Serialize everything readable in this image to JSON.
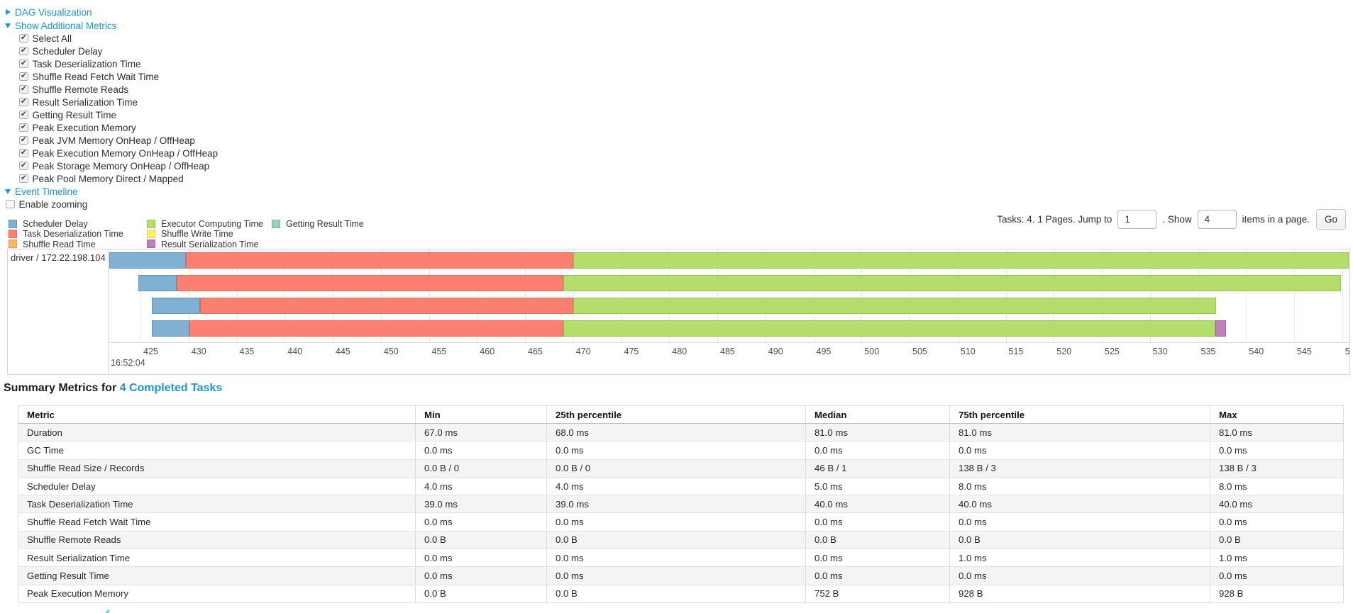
{
  "accent": {
    "link_blue": "#1a95d1"
  },
  "colors": {
    "scheduler_delay": "#80B1D3",
    "task_deserialization": "#FB8072",
    "shuffle_read": "#FDB462",
    "executor_computing": "#B3DE69",
    "shuffle_write": "#FFED6F",
    "result_serialization": "#BC80BD",
    "getting_result": "#8DD3C7"
  },
  "border_colors": {
    "scheduler_delay": "#5f93b5",
    "task_deserialization": "#df6a5e",
    "shuffle_read": "#dd9c50",
    "executor_computing": "#96c153",
    "shuffle_write": "#ddcb5e",
    "result_serialization": "#a268a5",
    "getting_result": "#72b9ab"
  },
  "sections": {
    "dag": {
      "label": "DAG Visualization"
    },
    "metrics_toggle": {
      "label": "Show Additional Metrics"
    },
    "metrics_items": [
      {
        "label": "Select All",
        "checked": true
      },
      {
        "label": "Scheduler Delay",
        "checked": true
      },
      {
        "label": "Task Deserialization Time",
        "checked": true
      },
      {
        "label": "Shuffle Read Fetch Wait Time",
        "checked": true
      },
      {
        "label": "Shuffle Remote Reads",
        "checked": true
      },
      {
        "label": "Result Serialization Time",
        "checked": true
      },
      {
        "label": "Getting Result Time",
        "checked": true
      },
      {
        "label": "Peak Execution Memory",
        "checked": true
      },
      {
        "label": "Peak JVM Memory OnHeap / OffHeap",
        "checked": true
      },
      {
        "label": "Peak Execution Memory OnHeap / OffHeap",
        "checked": true
      },
      {
        "label": "Peak Storage Memory OnHeap / OffHeap",
        "checked": true
      },
      {
        "label": "Peak Pool Memory Direct / Mapped",
        "checked": true
      }
    ],
    "event_timeline_toggle": {
      "label": "Event Timeline"
    },
    "enable_zooming": {
      "label": "Enable zooming",
      "checked": false
    }
  },
  "pagination": {
    "tasks_text": "Tasks: 4. 1 Pages. Jump to",
    "jump_value": "1",
    "show_text": ". Show",
    "show_value": "4",
    "suffix_text": "items in a page.",
    "go_label": "Go"
  },
  "legend": {
    "columns": [
      [
        {
          "key": "scheduler_delay",
          "label": "Scheduler Delay"
        },
        {
          "key": "task_deserialization",
          "label": "Task Deserialization Time"
        },
        {
          "key": "shuffle_read",
          "label": "Shuffle Read Time"
        }
      ],
      [
        {
          "key": "executor_computing",
          "label": "Executor Computing Time"
        },
        {
          "key": "shuffle_write",
          "label": "Shuffle Write Time"
        },
        {
          "key": "result_serialization",
          "label": "Result Serialization Time"
        }
      ],
      [
        {
          "key": "getting_result",
          "label": "Getting Result Time"
        }
      ]
    ]
  },
  "chart_data": {
    "type": "timeline-gantt",
    "row_label": "driver / 172.22.198.104",
    "axis": {
      "start": 425,
      "end": 550,
      "step": 5,
      "major_label": "16:52:04"
    },
    "bars": [
      {
        "name": "task-0",
        "segments": [
          {
            "key": "scheduler_delay",
            "from": 421.75,
            "to": 429.7
          },
          {
            "key": "task_deserialization",
            "from": 429.7,
            "to": 470.0
          },
          {
            "key": "executor_computing",
            "from": 470.0,
            "to": 550.7
          }
        ]
      },
      {
        "name": "task-1",
        "segments": [
          {
            "key": "scheduler_delay",
            "from": 424.78,
            "to": 428.76
          },
          {
            "key": "task_deserialization",
            "from": 428.76,
            "to": 469.0
          },
          {
            "key": "executor_computing",
            "from": 469.0,
            "to": 549.9
          }
        ]
      },
      {
        "name": "task-2",
        "segments": [
          {
            "key": "scheduler_delay",
            "from": 426.18,
            "to": 431.2
          },
          {
            "key": "task_deserialization",
            "from": 431.2,
            "to": 470.0
          },
          {
            "key": "executor_computing",
            "from": 470.0,
            "to": 536.9
          }
        ]
      },
      {
        "name": "task-3",
        "segments": [
          {
            "key": "scheduler_delay",
            "from": 426.18,
            "to": 430.1
          },
          {
            "key": "task_deserialization",
            "from": 430.1,
            "to": 469.0
          },
          {
            "key": "executor_computing",
            "from": 469.0,
            "to": 536.8
          },
          {
            "key": "result_serialization",
            "from": 536.8,
            "to": 537.9
          }
        ]
      }
    ]
  },
  "summary": {
    "title_prefix": "Summary Metrics for ",
    "title_link": "4 Completed Tasks",
    "columns": [
      "Metric",
      "Min",
      "25th percentile",
      "Median",
      "75th percentile",
      "Max"
    ],
    "rows": [
      [
        "Duration",
        "67.0 ms",
        "68.0 ms",
        "81.0 ms",
        "81.0 ms",
        "81.0 ms"
      ],
      [
        "GC Time",
        "0.0 ms",
        "0.0 ms",
        "0.0 ms",
        "0.0 ms",
        "0.0 ms"
      ],
      [
        "Shuffle Read Size / Records",
        "0.0 B / 0",
        "0.0 B / 0",
        "46 B / 1",
        "138 B / 3",
        "138 B / 3"
      ],
      [
        "Scheduler Delay",
        "4.0 ms",
        "4.0 ms",
        "5.0 ms",
        "8.0 ms",
        "8.0 ms"
      ],
      [
        "Task Deserialization Time",
        "39.0 ms",
        "39.0 ms",
        "40.0 ms",
        "40.0 ms",
        "40.0 ms"
      ],
      [
        "Shuffle Read Fetch Wait Time",
        "0.0 ms",
        "0.0 ms",
        "0.0 ms",
        "0.0 ms",
        "0.0 ms"
      ],
      [
        "Shuffle Remote Reads",
        "0.0 B",
        "0.0 B",
        "0.0 B",
        "0.0 B",
        "0.0 B"
      ],
      [
        "Result Serialization Time",
        "0.0 ms",
        "0.0 ms",
        "0.0 ms",
        "1.0 ms",
        "1.0 ms"
      ],
      [
        "Getting Result Time",
        "0.0 ms",
        "0.0 ms",
        "0.0 ms",
        "0.0 ms",
        "0.0 ms"
      ],
      [
        "Peak Execution Memory",
        "0.0 B",
        "0.0 B",
        "752 B",
        "928 B",
        "928 B"
      ]
    ]
  }
}
